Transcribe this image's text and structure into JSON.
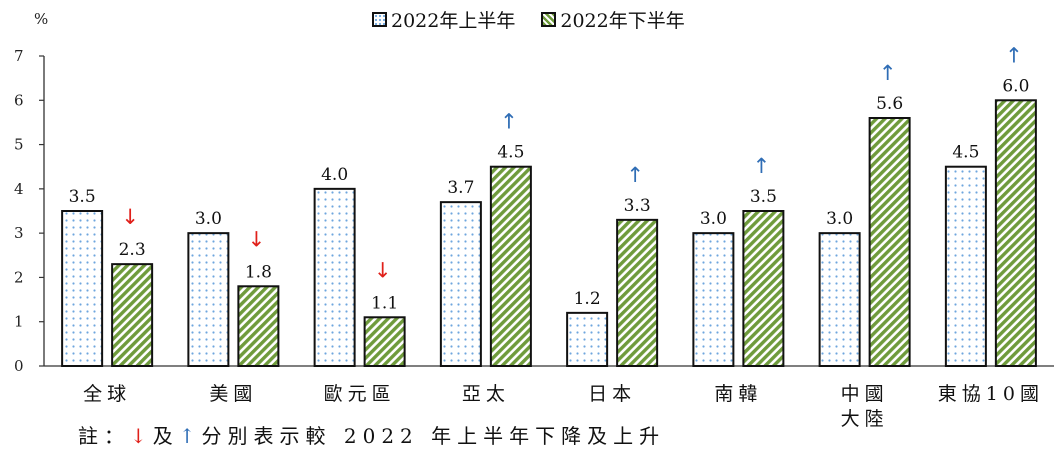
{
  "chart_data": {
    "type": "bar",
    "y_unit": "%",
    "ylim": [
      0,
      7
    ],
    "y_ticks": [
      "0",
      "1",
      "2",
      "3",
      "4",
      "5",
      "6",
      "7"
    ],
    "categories": [
      "全球",
      "美國",
      "歐元區",
      "亞太",
      "日本",
      "南韓",
      "中國大陸",
      "東協10國"
    ],
    "category_lines": [
      [
        "全球"
      ],
      [
        "美國"
      ],
      [
        "歐元區"
      ],
      [
        "亞太"
      ],
      [
        "日本"
      ],
      [
        "南韓"
      ],
      [
        "中國",
        "大陸"
      ],
      [
        "東協10國"
      ]
    ],
    "series": [
      {
        "name": "2022年上半年",
        "values": [
          3.5,
          3.0,
          4.0,
          3.7,
          1.2,
          3.0,
          3.0,
          4.5
        ],
        "labels": [
          "3.5",
          "3.0",
          "4.0",
          "3.7",
          "1.2",
          "3.0",
          "3.0",
          "4.5"
        ],
        "pattern": "dotted"
      },
      {
        "name": "2022年下半年",
        "values": [
          2.3,
          1.8,
          1.1,
          4.5,
          3.3,
          3.5,
          5.6,
          6.0
        ],
        "labels": [
          "2.3",
          "1.8",
          "1.1",
          "4.5",
          "3.3",
          "3.5",
          "5.6",
          "6.0"
        ],
        "pattern": "hatched"
      }
    ],
    "arrows": [
      "down",
      "down",
      "down",
      "up",
      "up",
      "up",
      "up",
      "up"
    ],
    "arrow_glyphs": {
      "down": "↓",
      "up": "↑"
    },
    "arrow_colors": {
      "down": "#e0201a",
      "up": "#2f6db5"
    },
    "grid": false,
    "legend_position": "top-center"
  },
  "note": {
    "prefix": "註：",
    "down_glyph": "↓",
    "connector": "及",
    "up_glyph": "↑",
    "text": "分別表示較 2022 年上半年下降及上升"
  },
  "colors": {
    "dots": "#6ea6de",
    "hatch": "#6f9b3c",
    "axis": "#333333",
    "bar_border": "#111111"
  }
}
